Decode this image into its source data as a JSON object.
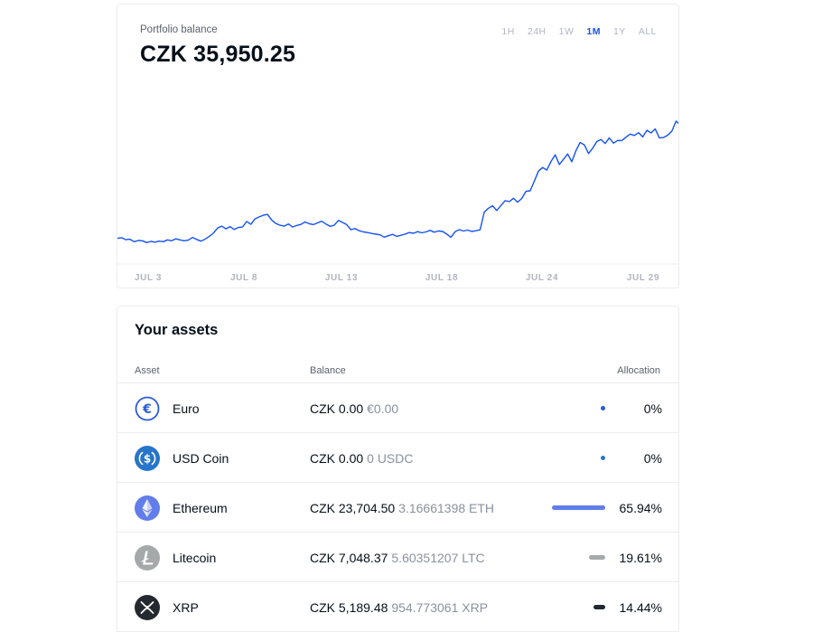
{
  "portfolio": {
    "label": "Portfolio balance",
    "value": "CZK 35,950.25",
    "ranges": [
      {
        "label": "1H",
        "active": false
      },
      {
        "label": "24H",
        "active": false
      },
      {
        "label": "1W",
        "active": false
      },
      {
        "label": "1M",
        "active": true
      },
      {
        "label": "1Y",
        "active": false
      },
      {
        "label": "ALL",
        "active": false
      }
    ],
    "x_ticks": [
      "JUL 3",
      "JUL 8",
      "JUL 13",
      "JUL 18",
      "JUL 24",
      "JUL 29"
    ]
  },
  "chart_data": {
    "type": "line",
    "color": "#1652f0",
    "x_labels": [
      "JUL 3",
      "JUL 8",
      "JUL 13",
      "JUL 18",
      "JUL 24",
      "JUL 29"
    ],
    "values": [
      16.8,
      17.2,
      15.9,
      16.2,
      14.6,
      15.4,
      15.2,
      14.0,
      14.8,
      14.3,
      15.0,
      14.6,
      15.8,
      15.2,
      16.5,
      15.8,
      15.2,
      15.6,
      17.4,
      16.1,
      15.0,
      16.2,
      18.0,
      20.1,
      23.5,
      24.8,
      23.0,
      24.5,
      22.6,
      23.9,
      24.2,
      27.8,
      26.0,
      29.5,
      30.8,
      31.9,
      32.5,
      28.8,
      26.5,
      25.4,
      24.8,
      26.2,
      24.2,
      25.2,
      25.9,
      27.5,
      26.4,
      25.8,
      26.9,
      28.0,
      26.2,
      24.7,
      25.4,
      28.5,
      27.2,
      25.8,
      22.5,
      23.2,
      21.8,
      21.0,
      20.6,
      20.0,
      19.5,
      19.1,
      17.6,
      18.5,
      19.4,
      18.1,
      18.8,
      19.5,
      20.6,
      20.1,
      21.2,
      20.4,
      21.0,
      22.0,
      20.8,
      21.6,
      21.3,
      19.6,
      17.5,
      21.1,
      22.5,
      21.6,
      22.2,
      21.3,
      21.8,
      22.4,
      34.0,
      36.5,
      38.1,
      35.0,
      38.3,
      41.5,
      40.8,
      43.0,
      40.5,
      42.9,
      47.6,
      47.9,
      54.2,
      60.8,
      63.2,
      61.5,
      67.0,
      71.5,
      65.1,
      68.5,
      72.0,
      66.9,
      74.2,
      79.5,
      78.0,
      72.3,
      75.8,
      80.2,
      81.5,
      78.9,
      82.5,
      79.1,
      80.9,
      80.8,
      83.0,
      85.0,
      84.1,
      86.0,
      83.2,
      87.5,
      85.8,
      88.4,
      82.5,
      82.8,
      84.3,
      87.0,
      93.5,
      91.2
    ],
    "ylim": [
      0,
      100
    ]
  },
  "assets": {
    "title": "Your assets",
    "headers": {
      "asset": "Asset",
      "balance": "Balance",
      "allocation": "Allocation"
    },
    "rows": [
      {
        "name": "Euro",
        "fiat": "CZK 0.00",
        "crypto": "€0.00",
        "allocation": "0%",
        "alloc_value": 0,
        "icon": "euro-icon",
        "color": "#2a5ada"
      },
      {
        "name": "USD Coin",
        "fiat": "CZK 0.00",
        "crypto": "0 USDC",
        "allocation": "0%",
        "alloc_value": 0,
        "icon": "usdc-icon",
        "color": "#2775ca"
      },
      {
        "name": "Ethereum",
        "fiat": "CZK 23,704.50",
        "crypto": "3.16661398 ETH",
        "allocation": "65.94%",
        "alloc_value": 65.94,
        "icon": "ethereum-icon",
        "color": "#627eea"
      },
      {
        "name": "Litecoin",
        "fiat": "CZK 7,048.37",
        "crypto": "5.60351207 LTC",
        "allocation": "19.61%",
        "alloc_value": 19.61,
        "icon": "litecoin-icon",
        "color": "#a6a9aa"
      },
      {
        "name": "XRP",
        "fiat": "CZK 5,189.48",
        "crypto": "954.773061 XRP",
        "allocation": "14.44%",
        "alloc_value": 14.44,
        "icon": "xrp-icon",
        "color": "#23292f"
      }
    ]
  }
}
